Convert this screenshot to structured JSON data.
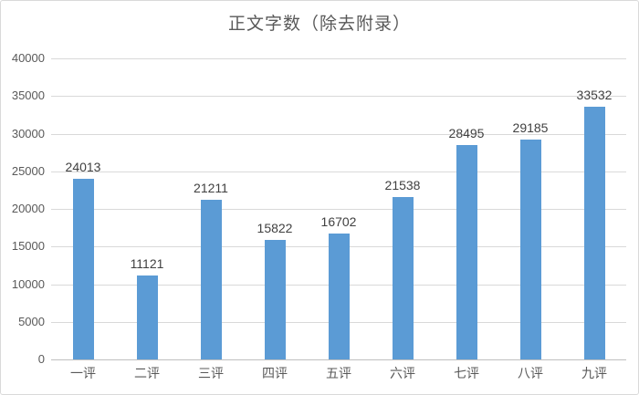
{
  "chart_data": {
    "type": "bar",
    "title": "正文字数（除去附录）",
    "categories": [
      "一评",
      "二评",
      "三评",
      "四评",
      "五评",
      "六评",
      "七评",
      "八评",
      "九评"
    ],
    "values": [
      24013,
      11121,
      21211,
      15822,
      16702,
      21538,
      28495,
      29185,
      33532
    ],
    "data_labels": [
      "24013",
      "11121",
      "21211",
      "15822",
      "16702",
      "21538",
      "28495",
      "29185",
      "33532"
    ],
    "ylim": [
      0,
      40000
    ],
    "ytick_step": 5000,
    "ytick_labels": [
      "0",
      "5000",
      "10000",
      "15000",
      "20000",
      "25000",
      "30000",
      "35000",
      "40000"
    ],
    "grid": true,
    "legend_position": "none",
    "bar_color": "#5b9bd5",
    "gridline_color": "#d9d9d9",
    "axis_line_color": "#bfbfbf",
    "tick_text_color": "#595959",
    "data_label_color": "#404040",
    "title_color": "#595959"
  }
}
